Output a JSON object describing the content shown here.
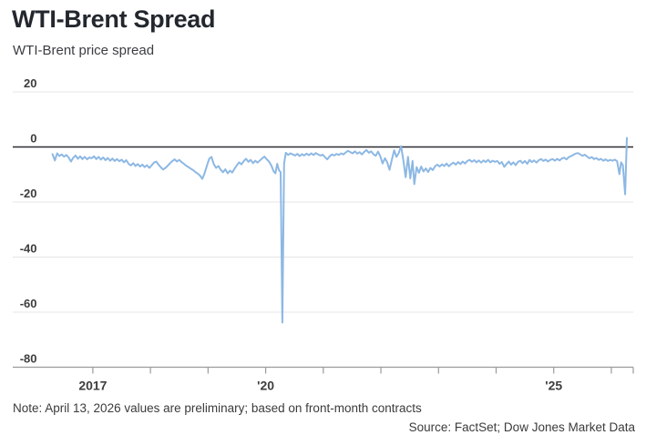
{
  "header": {
    "title": "WTI-Brent Spread",
    "subtitle": "WTI-Brent price spread"
  },
  "footer": {
    "note": "Note: April 13, 2026 values are preliminary; based on front-month contracts",
    "source": "Source: FactSet; Dow Jones Market Data"
  },
  "colors": {
    "title": "#23272e",
    "text": "#3b3e43",
    "gridline": "#e5e5e5",
    "zero_line": "#2a2d31",
    "axis": "#9b9b9b",
    "tick_label": "#3d3d3d",
    "line": "#8db8e4",
    "background": "#ffffff"
  },
  "chart_data": {
    "type": "line",
    "title": "WTI-Brent Spread",
    "subtitle": "WTI-Brent price spread",
    "xlabel": "",
    "ylabel": "",
    "ylim": [
      -80,
      20
    ],
    "xlim": [
      2015.61,
      2026.38
    ],
    "y_ticks": [
      20,
      0,
      -20,
      -40,
      -60,
      -80
    ],
    "x_ticks": [
      {
        "t": 2017,
        "label": "2017"
      },
      {
        "t": 2018,
        "label": ""
      },
      {
        "t": 2019,
        "label": ""
      },
      {
        "t": 2020,
        "label": "'20"
      },
      {
        "t": 2021,
        "label": ""
      },
      {
        "t": 2022,
        "label": ""
      },
      {
        "t": 2023,
        "label": ""
      },
      {
        "t": 2024,
        "label": ""
      },
      {
        "t": 2025,
        "label": "'25"
      },
      {
        "t": 2026,
        "label": ""
      },
      {
        "t": 2026.38,
        "label": ""
      }
    ],
    "grid": "horizontal",
    "legend": "none",
    "zero_line": true,
    "line_color": "#8db8e4",
    "series": [
      {
        "name": "WTI-Brent price spread",
        "points": [
          [
            2016.3,
            -2.6
          ],
          [
            2016.34,
            -4.9
          ],
          [
            2016.38,
            -2.3
          ],
          [
            2016.42,
            -3.3
          ],
          [
            2016.46,
            -2.7
          ],
          [
            2016.5,
            -3.5
          ],
          [
            2016.54,
            -2.9
          ],
          [
            2016.58,
            -3.8
          ],
          [
            2016.62,
            -5.3
          ],
          [
            2016.66,
            -3.9
          ],
          [
            2016.7,
            -3.1
          ],
          [
            2016.74,
            -4.3
          ],
          [
            2016.78,
            -3.4
          ],
          [
            2016.82,
            -4.4
          ],
          [
            2016.86,
            -3.6
          ],
          [
            2016.9,
            -4.5
          ],
          [
            2016.94,
            -3.8
          ],
          [
            2016.98,
            -4.1
          ],
          [
            2017.02,
            -3.4
          ],
          [
            2017.06,
            -4.4
          ],
          [
            2017.1,
            -3.6
          ],
          [
            2017.14,
            -4.6
          ],
          [
            2017.18,
            -3.8
          ],
          [
            2017.22,
            -4.8
          ],
          [
            2017.26,
            -4.0
          ],
          [
            2017.3,
            -5.0
          ],
          [
            2017.34,
            -4.2
          ],
          [
            2017.38,
            -5.1
          ],
          [
            2017.42,
            -4.4
          ],
          [
            2017.46,
            -5.2
          ],
          [
            2017.5,
            -4.6
          ],
          [
            2017.54,
            -5.6
          ],
          [
            2017.58,
            -4.8
          ],
          [
            2017.62,
            -6.1
          ],
          [
            2017.66,
            -6.7
          ],
          [
            2017.7,
            -5.9
          ],
          [
            2017.74,
            -6.9
          ],
          [
            2017.78,
            -6.2
          ],
          [
            2017.82,
            -7.1
          ],
          [
            2017.86,
            -6.4
          ],
          [
            2017.9,
            -7.3
          ],
          [
            2017.94,
            -6.6
          ],
          [
            2017.98,
            -7.6
          ],
          [
            2018.02,
            -6.7
          ],
          [
            2018.06,
            -5.7
          ],
          [
            2018.1,
            -5.3
          ],
          [
            2018.14,
            -6.4
          ],
          [
            2018.18,
            -7.4
          ],
          [
            2018.22,
            -8.2
          ],
          [
            2018.26,
            -7.6
          ],
          [
            2018.3,
            -6.8
          ],
          [
            2018.34,
            -5.9
          ],
          [
            2018.38,
            -5.1
          ],
          [
            2018.42,
            -4.5
          ],
          [
            2018.46,
            -5.3
          ],
          [
            2018.5,
            -4.7
          ],
          [
            2018.54,
            -5.5
          ],
          [
            2018.58,
            -6.1
          ],
          [
            2018.62,
            -6.8
          ],
          [
            2018.66,
            -7.3
          ],
          [
            2018.7,
            -7.9
          ],
          [
            2018.74,
            -8.4
          ],
          [
            2018.78,
            -9.1
          ],
          [
            2018.82,
            -9.7
          ],
          [
            2018.86,
            -10.4
          ],
          [
            2018.9,
            -11.6
          ],
          [
            2018.94,
            -9.5
          ],
          [
            2018.98,
            -6.8
          ],
          [
            2019.02,
            -4.3
          ],
          [
            2019.06,
            -3.6
          ],
          [
            2019.1,
            -6.3
          ],
          [
            2019.14,
            -7.6
          ],
          [
            2019.18,
            -6.9
          ],
          [
            2019.22,
            -8.3
          ],
          [
            2019.26,
            -9.2
          ],
          [
            2019.3,
            -8.1
          ],
          [
            2019.34,
            -9.6
          ],
          [
            2019.38,
            -8.6
          ],
          [
            2019.42,
            -9.3
          ],
          [
            2019.46,
            -7.9
          ],
          [
            2019.5,
            -6.6
          ],
          [
            2019.54,
            -5.6
          ],
          [
            2019.58,
            -6.3
          ],
          [
            2019.62,
            -5.1
          ],
          [
            2019.66,
            -4.3
          ],
          [
            2019.7,
            -5.4
          ],
          [
            2019.74,
            -4.7
          ],
          [
            2019.78,
            -5.9
          ],
          [
            2019.82,
            -5.0
          ],
          [
            2019.86,
            -5.7
          ],
          [
            2019.9,
            -4.9
          ],
          [
            2019.94,
            -4.1
          ],
          [
            2019.98,
            -3.5
          ],
          [
            2020.02,
            -4.5
          ],
          [
            2020.06,
            -5.4
          ],
          [
            2020.1,
            -6.8
          ],
          [
            2020.14,
            -8.9
          ],
          [
            2020.17,
            -9.6
          ],
          [
            2020.2,
            -6.1
          ],
          [
            2020.23,
            -8.4
          ],
          [
            2020.26,
            -9.2
          ],
          [
            2020.29,
            -63.8
          ],
          [
            2020.32,
            -6.0
          ],
          [
            2020.35,
            -2.1
          ],
          [
            2020.39,
            -2.9
          ],
          [
            2020.43,
            -2.3
          ],
          [
            2020.47,
            -2.7
          ],
          [
            2020.51,
            -3.1
          ],
          [
            2020.55,
            -2.5
          ],
          [
            2020.59,
            -3.3
          ],
          [
            2020.63,
            -2.6
          ],
          [
            2020.67,
            -3.1
          ],
          [
            2020.71,
            -2.4
          ],
          [
            2020.75,
            -3.0
          ],
          [
            2020.79,
            -2.3
          ],
          [
            2020.83,
            -2.9
          ],
          [
            2020.87,
            -2.2
          ],
          [
            2020.91,
            -2.7
          ],
          [
            2020.95,
            -3.1
          ],
          [
            2020.99,
            -2.8
          ],
          [
            2021.03,
            -3.7
          ],
          [
            2021.07,
            -4.5
          ],
          [
            2021.11,
            -3.4
          ],
          [
            2021.15,
            -2.7
          ],
          [
            2021.19,
            -3.1
          ],
          [
            2021.23,
            -2.5
          ],
          [
            2021.27,
            -2.9
          ],
          [
            2021.31,
            -2.3
          ],
          [
            2021.35,
            -2.7
          ],
          [
            2021.39,
            -2.0
          ],
          [
            2021.43,
            -1.4
          ],
          [
            2021.47,
            -1.9
          ],
          [
            2021.51,
            -2.3
          ],
          [
            2021.55,
            -1.6
          ],
          [
            2021.59,
            -2.4
          ],
          [
            2021.63,
            -1.9
          ],
          [
            2021.67,
            -2.7
          ],
          [
            2021.71,
            -1.8
          ],
          [
            2021.75,
            -1.1
          ],
          [
            2021.79,
            -2.1
          ],
          [
            2021.83,
            -1.6
          ],
          [
            2021.87,
            -2.6
          ],
          [
            2021.91,
            -3.2
          ],
          [
            2021.95,
            -1.7
          ],
          [
            2021.99,
            -3.4
          ],
          [
            2022.03,
            -6.0
          ],
          [
            2022.07,
            -4.1
          ],
          [
            2022.11,
            -5.6
          ],
          [
            2022.15,
            -8.3
          ],
          [
            2022.19,
            -4.6
          ],
          [
            2022.23,
            -1.2
          ],
          [
            2022.27,
            -3.6
          ],
          [
            2022.31,
            -2.2
          ],
          [
            2022.35,
            0.3
          ],
          [
            2022.39,
            -4.9
          ],
          [
            2022.43,
            -11.0
          ],
          [
            2022.47,
            -3.6
          ],
          [
            2022.51,
            -11.4
          ],
          [
            2022.55,
            -5.1
          ],
          [
            2022.58,
            -13.5
          ],
          [
            2022.62,
            -7.3
          ],
          [
            2022.66,
            -9.4
          ],
          [
            2022.7,
            -7.1
          ],
          [
            2022.74,
            -8.9
          ],
          [
            2022.78,
            -7.8
          ],
          [
            2022.82,
            -9.1
          ],
          [
            2022.86,
            -7.6
          ],
          [
            2022.9,
            -8.4
          ],
          [
            2022.94,
            -7.0
          ],
          [
            2022.98,
            -6.4
          ],
          [
            2023.02,
            -7.1
          ],
          [
            2023.06,
            -6.3
          ],
          [
            2023.1,
            -6.9
          ],
          [
            2023.14,
            -6.0
          ],
          [
            2023.18,
            -7.0
          ],
          [
            2023.22,
            -6.2
          ],
          [
            2023.26,
            -5.7
          ],
          [
            2023.3,
            -6.4
          ],
          [
            2023.34,
            -5.5
          ],
          [
            2023.38,
            -6.2
          ],
          [
            2023.42,
            -5.3
          ],
          [
            2023.46,
            -6.0
          ],
          [
            2023.5,
            -5.1
          ],
          [
            2023.54,
            -4.7
          ],
          [
            2023.58,
            -5.4
          ],
          [
            2023.62,
            -4.8
          ],
          [
            2023.66,
            -5.6
          ],
          [
            2023.7,
            -4.9
          ],
          [
            2023.74,
            -5.7
          ],
          [
            2023.78,
            -4.9
          ],
          [
            2023.82,
            -5.5
          ],
          [
            2023.86,
            -4.7
          ],
          [
            2023.9,
            -5.6
          ],
          [
            2023.94,
            -5.0
          ],
          [
            2023.98,
            -5.4
          ],
          [
            2024.02,
            -5.1
          ],
          [
            2024.06,
            -6.1
          ],
          [
            2024.1,
            -5.5
          ],
          [
            2024.14,
            -7.2
          ],
          [
            2024.18,
            -6.2
          ],
          [
            2024.22,
            -5.3
          ],
          [
            2024.26,
            -6.4
          ],
          [
            2024.3,
            -5.6
          ],
          [
            2024.34,
            -6.6
          ],
          [
            2024.38,
            -5.4
          ],
          [
            2024.42,
            -5.0
          ],
          [
            2024.46,
            -5.9
          ],
          [
            2024.5,
            -5.1
          ],
          [
            2024.54,
            -6.1
          ],
          [
            2024.58,
            -4.7
          ],
          [
            2024.62,
            -5.5
          ],
          [
            2024.66,
            -4.9
          ],
          [
            2024.7,
            -5.7
          ],
          [
            2024.74,
            -4.8
          ],
          [
            2024.78,
            -4.4
          ],
          [
            2024.82,
            -5.1
          ],
          [
            2024.86,
            -4.6
          ],
          [
            2024.9,
            -5.3
          ],
          [
            2024.94,
            -4.7
          ],
          [
            2024.98,
            -4.4
          ],
          [
            2025.02,
            -5.0
          ],
          [
            2025.06,
            -4.3
          ],
          [
            2025.1,
            -4.9
          ],
          [
            2025.14,
            -4.2
          ],
          [
            2025.18,
            -3.9
          ],
          [
            2025.22,
            -4.5
          ],
          [
            2025.26,
            -3.7
          ],
          [
            2025.3,
            -3.3
          ],
          [
            2025.34,
            -2.9
          ],
          [
            2025.38,
            -2.4
          ],
          [
            2025.42,
            -2.2
          ],
          [
            2025.46,
            -2.7
          ],
          [
            2025.5,
            -3.2
          ],
          [
            2025.54,
            -2.8
          ],
          [
            2025.58,
            -3.5
          ],
          [
            2025.62,
            -4.1
          ],
          [
            2025.66,
            -3.7
          ],
          [
            2025.7,
            -4.4
          ],
          [
            2025.74,
            -4.0
          ],
          [
            2025.78,
            -4.7
          ],
          [
            2025.82,
            -4.3
          ],
          [
            2025.86,
            -5.0
          ],
          [
            2025.9,
            -4.5
          ],
          [
            2025.94,
            -5.1
          ],
          [
            2025.98,
            -4.7
          ],
          [
            2026.02,
            -5.0
          ],
          [
            2026.06,
            -4.6
          ],
          [
            2026.1,
            -5.2
          ],
          [
            2026.14,
            -9.9
          ],
          [
            2026.17,
            -5.6
          ],
          [
            2026.2,
            -6.6
          ],
          [
            2026.24,
            -17.2
          ],
          [
            2026.27,
            3.3
          ]
        ]
      }
    ]
  }
}
